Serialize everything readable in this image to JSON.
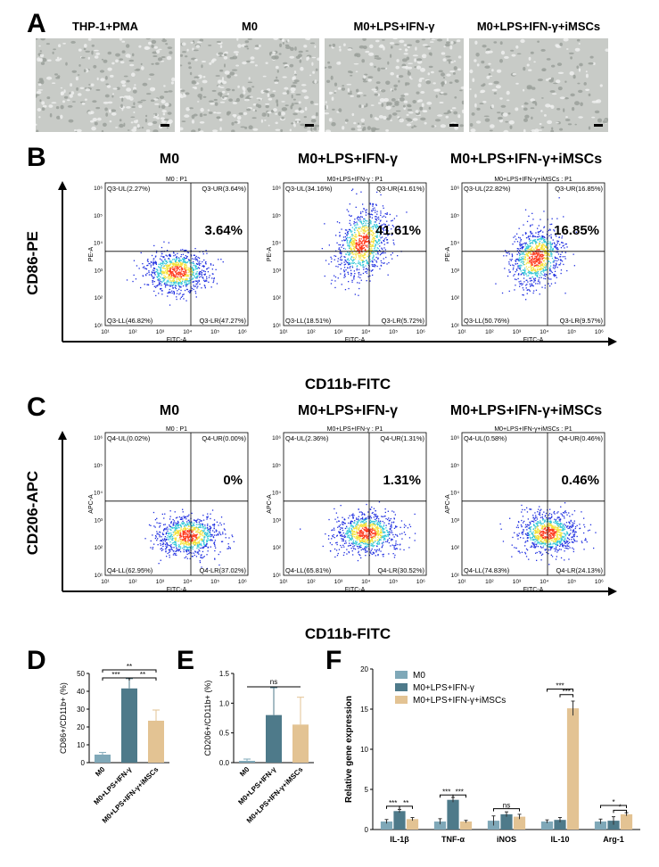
{
  "panelA": {
    "letter": "A",
    "titles": [
      "THP-1+PMA",
      "M0",
      "M0+LPS+IFN-γ",
      "M0+LPS+IFN-γ+iMSCs"
    ]
  },
  "panelB": {
    "letter": "B",
    "col_titles": [
      "M0",
      "M0+LPS+IFN-γ",
      "M0+LPS+IFN-γ+iMSCs"
    ],
    "plot_titles": [
      "M0 : P1",
      "M0+LPS+IFN-γ : P1",
      "M0+LPS+IFN-γ+iMSCs : P1"
    ],
    "y_axis_label": "CD86-PE",
    "x_axis_label": "CD11b-FITC",
    "plot_ylabel": "PE-A",
    "plot_xlabel": "FITC-A",
    "quadrants": [
      {
        "ul": "Q3-UL(2.27%)",
        "ur": "Q3-UR(3.64%)",
        "ll": "Q3-LL(46.82%)",
        "lr": "Q3-LR(47.27%)",
        "big": "3.64%"
      },
      {
        "ul": "Q3-UL(34.16%)",
        "ur": "Q3-UR(41.61%)",
        "ll": "Q3-LL(18.51%)",
        "lr": "Q3-LR(5.72%)",
        "big": "41.61%"
      },
      {
        "ul": "Q3-UL(22.82%)",
        "ur": "Q3-UR(16.85%)",
        "ll": "Q3-LL(50.76%)",
        "lr": "Q3-LR(9.57%)",
        "big": "16.85%"
      }
    ]
  },
  "panelC": {
    "letter": "C",
    "col_titles": [
      "M0",
      "M0+LPS+IFN-γ",
      "M0+LPS+IFN-γ+iMSCs"
    ],
    "plot_titles": [
      "M0 : P1",
      "M0+LPS+IFN-γ : P1",
      "M0+LPS+IFN-γ+iMSCs : P1"
    ],
    "y_axis_label": "CD206-APC",
    "x_axis_label": "CD11b-FITC",
    "plot_ylabel": "APC-A",
    "plot_xlabel": "FITC-A",
    "quadrants": [
      {
        "ul": "Q4-UL(0.02%)",
        "ur": "Q4-UR(0.00%)",
        "ll": "Q4-LL(62.95%)",
        "lr": "Q4-LR(37.02%)",
        "big": "0%"
      },
      {
        "ul": "Q4-UL(2.36%)",
        "ur": "Q4-UR(1.31%)",
        "ll": "Q4-LL(65.81%)",
        "lr": "Q4-LR(30.52%)",
        "big": "1.31%"
      },
      {
        "ul": "Q4-UL(0.58%)",
        "ur": "Q4-UR(0.46%)",
        "ll": "Q4-LL(74.83%)",
        "lr": "Q4-LR(24.13%)",
        "big": "0.46%"
      }
    ]
  },
  "flow_ticks": [
    "10¹",
    "10²",
    "10³",
    "10⁴",
    "10⁵",
    "10⁶"
  ],
  "chart_data": [
    {
      "type": "bar",
      "panel": "D",
      "categories": [
        "M0",
        "M0+LPS+IFN-γ",
        "M0+LPS+IFN-γ+iMSCs"
      ],
      "values": [
        4.5,
        41.6,
        23.5
      ],
      "errors": [
        1.2,
        5.5,
        6.0
      ],
      "ylabel": "CD86+/CD11b+ (%)",
      "ylim": [
        0,
        50
      ],
      "yticks": [
        "0",
        "10",
        "20",
        "30",
        "40",
        "50"
      ],
      "colors": [
        "#7fa8b8",
        "#4e7a8a",
        "#e3c393"
      ],
      "significance": [
        "***",
        "**",
        "**"
      ]
    },
    {
      "type": "bar",
      "panel": "E",
      "categories": [
        "M0",
        "M0+LPS+IFN-γ",
        "M0+LPS+IFN-γ+iMSCs"
      ],
      "values": [
        0.03,
        0.8,
        0.64
      ],
      "errors": [
        0.03,
        0.46,
        0.46
      ],
      "ylabel": "CD206+/CD11b+ (%)",
      "ylim": [
        0,
        1.5
      ],
      "yticks": [
        "0.0",
        "0.5",
        "1.0",
        "1.5"
      ],
      "colors": [
        "#7fa8b8",
        "#4e7a8a",
        "#e3c393"
      ],
      "significance": [
        "ns"
      ]
    },
    {
      "type": "bar",
      "panel": "F",
      "categories": [
        "IL-1β",
        "TNF-α",
        "iNOS",
        "IL-10",
        "Arg-1"
      ],
      "series": [
        {
          "name": "M0",
          "values": [
            1.0,
            1.0,
            1.1,
            1.0,
            1.0
          ],
          "errors": [
            0.25,
            0.35,
            0.6,
            0.2,
            0.3
          ]
        },
        {
          "name": "M0+LPS+IFN-γ",
          "values": [
            2.3,
            3.7,
            1.9,
            1.2,
            1.1
          ],
          "errors": [
            0.2,
            0.3,
            0.3,
            0.3,
            0.5
          ]
        },
        {
          "name": "M0+LPS+IFN-γ+iMSCs",
          "values": [
            1.3,
            1.0,
            1.6,
            15.1,
            1.9
          ],
          "errors": [
            0.2,
            0.15,
            0.3,
            0.9,
            0.2
          ]
        }
      ],
      "ylabel": "Relative gene expression",
      "ylim": [
        0,
        20
      ],
      "yticks": [
        "0",
        "5",
        "10",
        "15",
        "20"
      ],
      "colors": [
        "#7fa8b8",
        "#4e7a8a",
        "#e3c393"
      ],
      "significance": [
        "***",
        "**",
        "***",
        "***",
        "ns",
        "***",
        "***",
        "*",
        "*"
      ]
    }
  ],
  "panelD": {
    "letter": "D"
  },
  "panelE": {
    "letter": "E"
  },
  "panelF": {
    "letter": "F"
  }
}
